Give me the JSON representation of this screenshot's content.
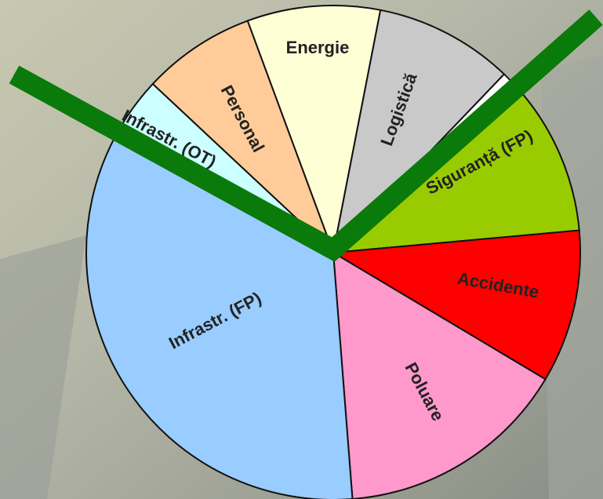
{
  "chart_data": {
    "type": "pie",
    "categories": [
      "Energie",
      "Logistică",
      null,
      "Siguranță (FP)",
      "Accidente",
      "Poluare",
      "Infrastr. (FP)",
      "Infrastr. (OT)",
      "Personal"
    ],
    "values": [
      8.7,
      9.1,
      1.1,
      10.3,
      10,
      15.2,
      34,
      4.2,
      7.4
    ],
    "colors": [
      "#ffffd6",
      "#c9c9c9",
      "#ffffff",
      "#99cc00",
      "#ff0000",
      "#ff99cc",
      "#99ccff",
      "#ccffff",
      "#ffcc99"
    ]
  }
}
